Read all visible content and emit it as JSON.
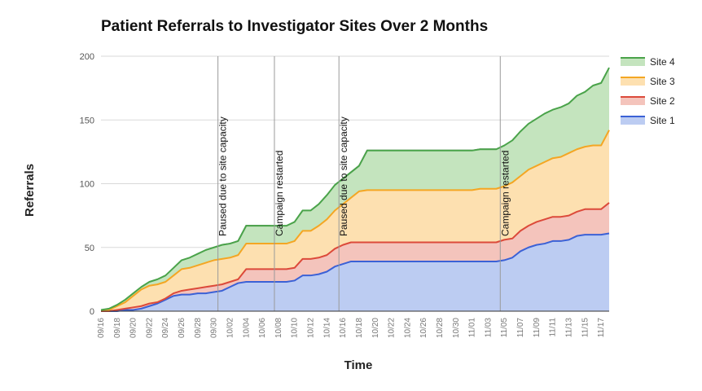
{
  "chart_data": {
    "type": "area",
    "stacked": true,
    "title": "Patient Referrals to Investigator Sites Over 2 Months",
    "xlabel": "Time",
    "ylabel": "Referrals",
    "ylim": [
      0,
      200
    ],
    "yticks": [
      0,
      50,
      100,
      150,
      200
    ],
    "grid": true,
    "legend_position": "right",
    "x_tick_labels": [
      "09/16",
      "09/18",
      "09/20",
      "09/22",
      "09/24",
      "09/26",
      "09/28",
      "09/30",
      "10/02",
      "10/04",
      "10/06",
      "10/08",
      "10/10",
      "10/12",
      "10/14",
      "10/16",
      "10/18",
      "10/20",
      "10/22",
      "10/24",
      "10/26",
      "10/28",
      "10/30",
      "11/01",
      "11/03",
      "11/05",
      "11/07",
      "11/09",
      "11/11",
      "11/13",
      "11/15",
      "11/17"
    ],
    "day_start": 0,
    "day_end": 63,
    "tick_step_days": 2,
    "series": [
      {
        "name": "Site 1",
        "line_color": "#3b61d6",
        "fill_color": "#bcccf2",
        "values": [
          0,
          0,
          0,
          1,
          1,
          2,
          4,
          6,
          9,
          12,
          13,
          13,
          14,
          14,
          15,
          16,
          19,
          22,
          23,
          23,
          23,
          23,
          23,
          23,
          24,
          28,
          28,
          29,
          31,
          35,
          37,
          39,
          39,
          39,
          39,
          39,
          39,
          39,
          39,
          39,
          39,
          39,
          39,
          39,
          39,
          39,
          39,
          39,
          39,
          39,
          40,
          42,
          47,
          50,
          52,
          53,
          55,
          55,
          56,
          59,
          60,
          60,
          60,
          61
        ]
      },
      {
        "name": "Site 2",
        "line_color": "#dc4a3a",
        "fill_color": "#f4c4bc",
        "values": [
          0,
          0,
          1,
          1,
          2,
          2,
          2,
          1,
          1,
          2,
          3,
          4,
          4,
          5,
          5,
          5,
          4,
          3,
          10,
          10,
          10,
          10,
          10,
          10,
          10,
          13,
          13,
          13,
          13,
          14,
          15,
          15,
          15,
          15,
          15,
          15,
          15,
          15,
          15,
          15,
          15,
          15,
          15,
          15,
          15,
          15,
          15,
          15,
          15,
          15,
          16,
          15,
          16,
          17,
          18,
          19,
          19,
          19,
          19,
          19,
          20,
          20,
          20,
          24
        ]
      },
      {
        "name": "Site 3",
        "line_color": "#f4a623",
        "fill_color": "#fde0b0",
        "values": [
          1,
          1,
          3,
          5,
          9,
          13,
          14,
          14,
          13,
          14,
          17,
          17,
          18,
          19,
          20,
          20,
          19,
          19,
          20,
          20,
          20,
          20,
          20,
          20,
          21,
          22,
          22,
          25,
          28,
          30,
          32,
          35,
          40,
          41,
          41,
          41,
          41,
          41,
          41,
          41,
          41,
          41,
          41,
          41,
          41,
          41,
          41,
          42,
          42,
          42,
          42,
          44,
          43,
          44,
          44,
          45,
          46,
          47,
          49,
          49,
          49,
          50,
          50,
          57
        ]
      },
      {
        "name": "Site 4",
        "line_color": "#4aa34a",
        "fill_color": "#c4e4be",
        "values": [
          0,
          1,
          1,
          2,
          2,
          2,
          3,
          4,
          5,
          6,
          7,
          8,
          9,
          10,
          10,
          11,
          11,
          11,
          14,
          14,
          14,
          14,
          14,
          14,
          15,
          16,
          16,
          17,
          19,
          20,
          20,
          20,
          20,
          31,
          31,
          31,
          31,
          31,
          31,
          31,
          31,
          31,
          31,
          31,
          31,
          31,
          31,
          31,
          31,
          31,
          32,
          33,
          35,
          36,
          37,
          38,
          38,
          39,
          39,
          42,
          43,
          47,
          49,
          49
        ]
      }
    ],
    "shaded_regions": [
      {
        "start_day": 14.5,
        "end_day": 21.5,
        "fill": "#d8d8d8"
      },
      {
        "start_day": 29.5,
        "end_day": 49.5,
        "fill": "#d8d8d8"
      }
    ],
    "annotations": [
      {
        "day": 14.5,
        "text": "Paused due to site capacity"
      },
      {
        "day": 21.5,
        "text": "Campaign restarted"
      },
      {
        "day": 29.5,
        "text": "Paused due to site capacity"
      },
      {
        "day": 49.5,
        "text": "Campaign restarted"
      }
    ]
  }
}
